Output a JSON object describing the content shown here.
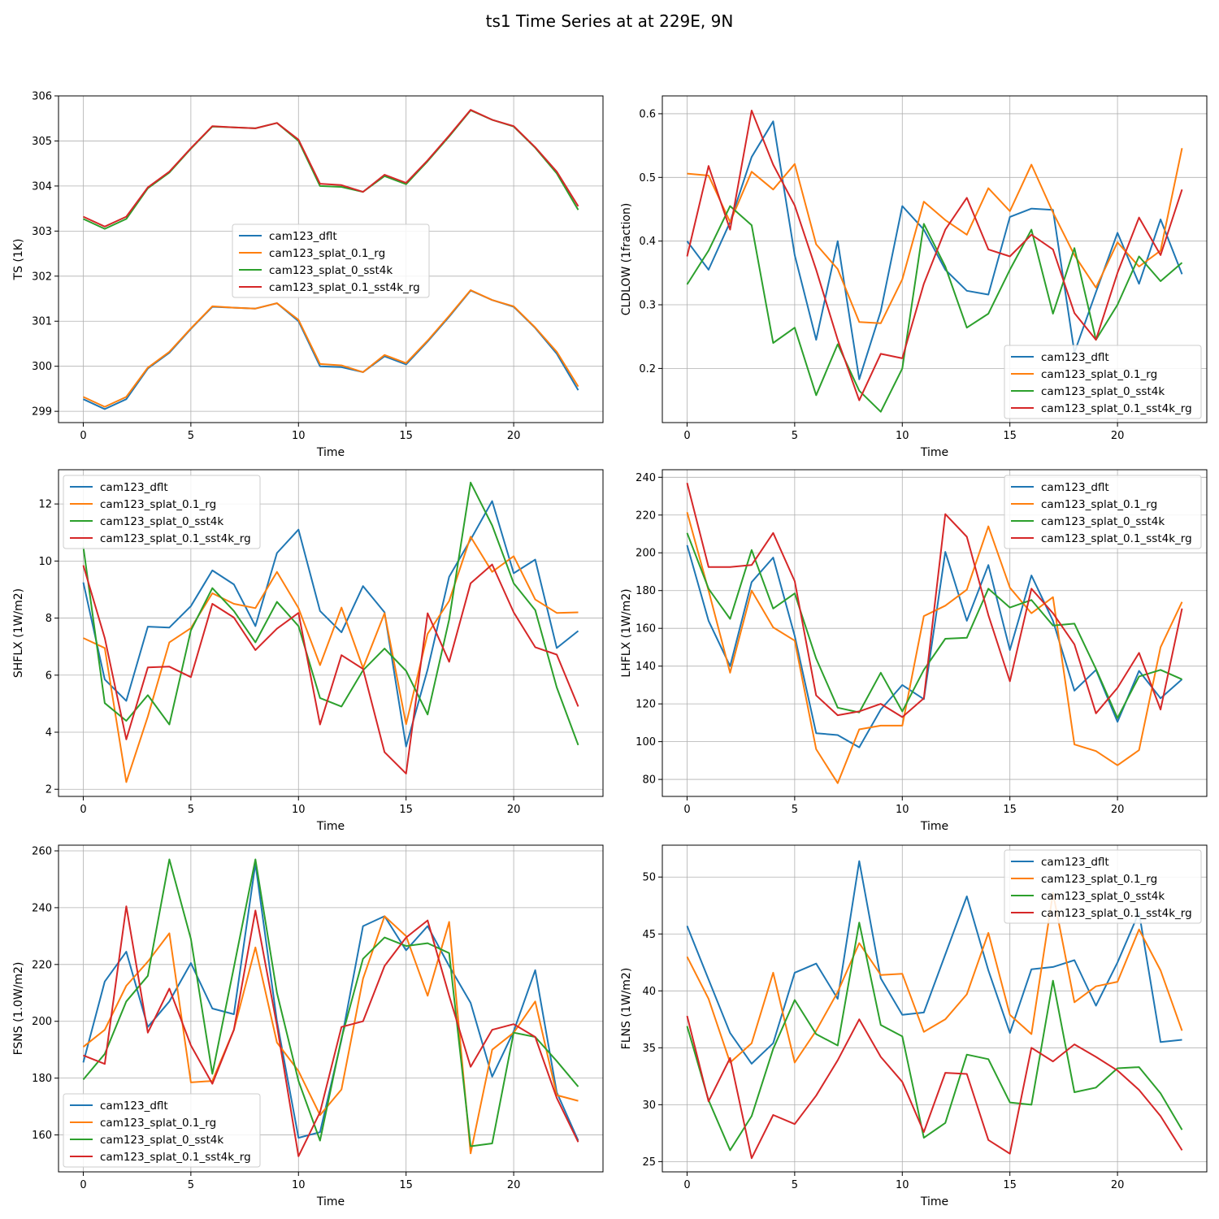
{
  "title": "ts1 Time Series at at 229E, 9N",
  "colors": {
    "cam123_dflt": "#1f77b4",
    "cam123_splat_0.1_rg": "#ff7f0e",
    "cam123_splat_0_sst4k": "#2ca02c",
    "cam123_splat_0.1_sst4k_rg": "#d62728"
  },
  "chart_data": [
    {
      "type": "line",
      "title": "",
      "xlabel": "Time",
      "ylabel": "TS (1K)",
      "xlim": [
        -1.15,
        24.15
      ],
      "ylim": [
        298.75,
        306.0
      ],
      "xticks": [
        0,
        5,
        10,
        15,
        20
      ],
      "yticks": [
        299,
        300,
        301,
        302,
        303,
        304,
        305,
        306
      ],
      "grid": true,
      "legend_position": "center",
      "x": [
        0,
        1,
        2,
        3,
        4,
        5,
        6,
        7,
        8,
        9,
        10,
        11,
        12,
        13,
        14,
        15,
        16,
        17,
        18,
        19,
        20,
        21,
        22,
        23
      ],
      "series": [
        {
          "name": "cam123_dflt",
          "values": [
            299.27,
            299.05,
            299.27,
            299.95,
            300.3,
            300.83,
            301.32,
            301.3,
            301.28,
            301.4,
            301.0,
            300.0,
            299.98,
            299.87,
            300.22,
            300.04,
            300.55,
            301.1,
            301.68,
            301.47,
            301.32,
            300.85,
            300.28,
            299.47
          ]
        },
        {
          "name": "cam123_splat_0.1_rg",
          "values": [
            299.32,
            299.1,
            299.32,
            299.97,
            300.32,
            300.84,
            301.33,
            301.3,
            301.28,
            301.4,
            301.03,
            300.05,
            300.02,
            299.87,
            300.25,
            300.07,
            300.57,
            301.12,
            301.69,
            301.47,
            301.33,
            300.86,
            300.32,
            299.55
          ]
        },
        {
          "name": "cam123_splat_0_sst4k",
          "values": [
            303.27,
            303.05,
            303.27,
            303.95,
            304.3,
            304.83,
            305.32,
            305.3,
            305.28,
            305.4,
            305.0,
            304.0,
            303.98,
            303.87,
            304.22,
            304.04,
            304.55,
            305.1,
            305.68,
            305.47,
            305.32,
            304.85,
            304.28,
            303.47
          ]
        },
        {
          "name": "cam123_splat_0.1_sst4k_rg",
          "values": [
            303.32,
            303.1,
            303.32,
            303.97,
            304.32,
            304.84,
            305.33,
            305.3,
            305.28,
            305.4,
            305.03,
            304.05,
            304.02,
            303.87,
            304.25,
            304.07,
            304.57,
            305.12,
            305.69,
            305.47,
            305.33,
            304.86,
            304.32,
            303.55
          ]
        }
      ]
    },
    {
      "type": "line",
      "title": "",
      "xlabel": "Time",
      "ylabel": "CLDLOW (1fraction)",
      "xlim": [
        -1.15,
        24.15
      ],
      "ylim": [
        0.115,
        0.628
      ],
      "xticks": [
        0,
        5,
        10,
        15,
        20
      ],
      "yticks": [
        0.2,
        0.3,
        0.4,
        0.5,
        0.6
      ],
      "ytick_labels": [
        "0.2",
        "0.3",
        "0.4",
        "0.5",
        "0.6"
      ],
      "grid": true,
      "legend_position": "lower-right",
      "x": [
        0,
        1,
        2,
        3,
        4,
        5,
        6,
        7,
        8,
        9,
        10,
        11,
        12,
        13,
        14,
        15,
        16,
        17,
        18,
        19,
        20,
        21,
        22,
        23
      ],
      "series": [
        {
          "name": "cam123_dflt",
          "values": [
            0.4,
            0.355,
            0.43,
            0.532,
            0.588,
            0.378,
            0.245,
            0.4,
            0.183,
            0.29,
            0.455,
            0.418,
            0.355,
            0.322,
            0.316,
            0.438,
            0.451,
            0.449,
            0.225,
            0.32,
            0.413,
            0.333,
            0.434,
            0.348
          ]
        },
        {
          "name": "cam123_splat_0.1_rg",
          "values": [
            0.506,
            0.503,
            0.43,
            0.509,
            0.481,
            0.521,
            0.395,
            0.356,
            0.273,
            0.271,
            0.34,
            0.462,
            0.433,
            0.41,
            0.483,
            0.447,
            0.52,
            0.445,
            0.378,
            0.327,
            0.398,
            0.36,
            0.385,
            0.546
          ]
        },
        {
          "name": "cam123_splat_0_sst4k",
          "values": [
            0.332,
            0.385,
            0.455,
            0.425,
            0.24,
            0.264,
            0.158,
            0.238,
            0.165,
            0.132,
            0.2,
            0.427,
            0.36,
            0.264,
            0.286,
            0.355,
            0.418,
            0.286,
            0.389,
            0.245,
            0.3,
            0.376,
            0.337,
            0.366
          ]
        },
        {
          "name": "cam123_splat_0.1_sst4k_rg",
          "values": [
            0.376,
            0.518,
            0.418,
            0.605,
            0.52,
            0.456,
            0.355,
            0.245,
            0.15,
            0.223,
            0.216,
            0.333,
            0.418,
            0.468,
            0.387,
            0.376,
            0.41,
            0.387,
            0.287,
            0.245,
            0.35,
            0.437,
            0.378,
            0.481
          ]
        }
      ]
    },
    {
      "type": "line",
      "title": "",
      "xlabel": "Time",
      "ylabel": "SHFLX (1W/m2)",
      "xlim": [
        -1.15,
        24.15
      ],
      "ylim": [
        1.75,
        13.2
      ],
      "xticks": [
        0,
        5,
        10,
        15,
        20
      ],
      "yticks": [
        2,
        4,
        6,
        8,
        10,
        12
      ],
      "grid": true,
      "legend_position": "upper-left",
      "x": [
        0,
        1,
        2,
        3,
        4,
        5,
        6,
        7,
        8,
        9,
        10,
        11,
        12,
        13,
        14,
        15,
        16,
        17,
        18,
        19,
        20,
        21,
        22,
        23
      ],
      "series": [
        {
          "name": "cam123_dflt",
          "values": [
            9.25,
            5.85,
            5.1,
            7.7,
            7.67,
            8.42,
            9.67,
            9.18,
            7.72,
            10.28,
            11.1,
            8.25,
            7.5,
            9.12,
            8.2,
            3.5,
            6.2,
            9.45,
            10.75,
            12.1,
            9.57,
            10.05,
            6.95,
            7.55
          ]
        },
        {
          "name": "cam123_splat_0.1_rg",
          "values": [
            7.3,
            6.95,
            2.25,
            4.55,
            7.15,
            7.65,
            8.87,
            8.5,
            8.35,
            9.62,
            8.35,
            6.35,
            8.37,
            6.25,
            8.17,
            4.28,
            7.45,
            8.6,
            10.85,
            9.62,
            10.17,
            8.65,
            8.18,
            8.2
          ]
        },
        {
          "name": "cam123_splat_0_sst4k",
          "values": [
            10.5,
            5.02,
            4.4,
            5.3,
            4.27,
            7.57,
            9.05,
            8.25,
            7.15,
            8.57,
            7.72,
            5.2,
            4.9,
            6.17,
            6.93,
            6.15,
            4.62,
            7.95,
            12.75,
            11.25,
            9.22,
            8.28,
            5.57,
            3.55
          ]
        },
        {
          "name": "cam123_splat_0.1_sst4k_rg",
          "values": [
            9.85,
            7.3,
            3.75,
            6.27,
            6.3,
            5.93,
            8.5,
            8.02,
            6.88,
            7.63,
            8.18,
            4.27,
            6.7,
            6.22,
            3.3,
            2.55,
            8.17,
            6.47,
            9.22,
            9.88,
            8.2,
            6.98,
            6.72,
            4.9
          ]
        }
      ]
    },
    {
      "type": "line",
      "title": "",
      "xlabel": "Time",
      "ylabel": "LHFLX (1W/m2)",
      "xlim": [
        -1.15,
        24.15
      ],
      "ylim": [
        71.0,
        244.0
      ],
      "xticks": [
        0,
        5,
        10,
        15,
        20
      ],
      "yticks": [
        80,
        100,
        120,
        140,
        160,
        180,
        200,
        220,
        240
      ],
      "grid": true,
      "legend_position": "upper-right",
      "x": [
        0,
        1,
        2,
        3,
        4,
        5,
        6,
        7,
        8,
        9,
        10,
        11,
        12,
        13,
        14,
        15,
        16,
        17,
        18,
        19,
        20,
        21,
        22,
        23
      ],
      "series": [
        {
          "name": "cam123_dflt",
          "values": [
            204,
            164,
            140,
            184.5,
            197.5,
            156,
            104.5,
            103.5,
            97,
            117,
            130,
            122.5,
            200.5,
            164,
            193.5,
            148.5,
            188,
            164,
            127,
            138,
            110.5,
            137.5,
            123,
            133
          ]
        },
        {
          "name": "cam123_splat_0.1_rg",
          "values": [
            221.5,
            180,
            136.5,
            180,
            160.5,
            153.5,
            96,
            78,
            106.5,
            108.5,
            108.5,
            166.5,
            172,
            180.5,
            214,
            181.5,
            168,
            176.5,
            98.5,
            95,
            87.5,
            95.5,
            150,
            174
          ]
        },
        {
          "name": "cam123_splat_0_sst4k",
          "values": [
            210.5,
            181,
            165,
            201.5,
            170.5,
            178.5,
            144,
            118,
            115.5,
            136.5,
            116,
            138,
            154.5,
            155,
            181,
            171,
            175,
            161.5,
            162.5,
            138.5,
            112.5,
            134.5,
            138,
            133
          ]
        },
        {
          "name": "cam123_splat_0.1_sst4k_rg",
          "values": [
            237,
            192.5,
            192.5,
            193.5,
            210.5,
            185,
            124.5,
            114,
            116,
            120,
            113,
            123,
            220.5,
            208.5,
            167,
            132,
            181,
            168,
            151.5,
            115,
            128.5,
            147,
            117,
            170.5
          ]
        }
      ]
    },
    {
      "type": "line",
      "title": "",
      "xlabel": "Time",
      "ylabel": "FSNS (1.0W/m2)",
      "xlim": [
        -1.15,
        24.15
      ],
      "ylim": [
        147.0,
        262.0
      ],
      "xticks": [
        0,
        5,
        10,
        15,
        20
      ],
      "yticks": [
        160,
        180,
        200,
        220,
        240,
        260
      ],
      "grid": true,
      "legend_position": "lower-left",
      "x": [
        0,
        1,
        2,
        3,
        4,
        5,
        6,
        7,
        8,
        9,
        10,
        11,
        12,
        13,
        14,
        15,
        16,
        17,
        18,
        19,
        20,
        21,
        22,
        23
      ],
      "series": [
        {
          "name": "cam123_dflt",
          "values": [
            185.5,
            214,
            224.5,
            198,
            207,
            220.5,
            204.5,
            202.5,
            255.5,
            200,
            159,
            161,
            193.5,
            233.5,
            237,
            225,
            233.5,
            219.5,
            206.5,
            180.5,
            196.5,
            218,
            175,
            158
          ]
        },
        {
          "name": "cam123_splat_0.1_rg",
          "values": [
            191,
            197,
            212.5,
            221,
            231,
            178.5,
            179,
            197,
            226,
            192.5,
            182.5,
            167,
            176,
            215,
            237,
            230,
            209,
            235,
            153.5,
            190,
            196,
            207,
            174,
            172
          ]
        },
        {
          "name": "cam123_splat_0_sst4k",
          "values": [
            179.5,
            188.5,
            207,
            216,
            257,
            229,
            181.5,
            219,
            257,
            210,
            179,
            158,
            194,
            222,
            229.5,
            226.5,
            227.5,
            224,
            156,
            157,
            196,
            194.5,
            186,
            177
          ]
        },
        {
          "name": "cam123_splat_0.1_sst4k_rg",
          "values": [
            188,
            185,
            240.5,
            196,
            211.5,
            191.5,
            178,
            197,
            239,
            198.5,
            152.5,
            168,
            198,
            200,
            219.5,
            229.5,
            235.5,
            209,
            184,
            197,
            199,
            194.5,
            173,
            157.5
          ]
        }
      ]
    },
    {
      "type": "line",
      "title": "",
      "xlabel": "Time",
      "ylabel": "FLNS (1W/m2)",
      "xlim": [
        -1.15,
        24.15
      ],
      "ylim": [
        24.1,
        52.8
      ],
      "xticks": [
        0,
        5,
        10,
        15,
        20
      ],
      "yticks": [
        25,
        30,
        35,
        40,
        45,
        50
      ],
      "grid": true,
      "legend_position": "upper-right",
      "x": [
        0,
        1,
        2,
        3,
        4,
        5,
        6,
        7,
        8,
        9,
        10,
        11,
        12,
        13,
        14,
        15,
        16,
        17,
        18,
        19,
        20,
        21,
        22,
        23
      ],
      "series": [
        {
          "name": "cam123_dflt",
          "values": [
            45.7,
            41,
            36.3,
            33.6,
            35.4,
            41.6,
            42.4,
            39.3,
            51.4,
            41.1,
            37.9,
            38.1,
            43.2,
            48.3,
            41.8,
            36.3,
            41.9,
            42.1,
            42.7,
            38.7,
            42.5,
            46.9,
            35.5,
            35.7
          ]
        },
        {
          "name": "cam123_splat_0.1_rg",
          "values": [
            43,
            39.3,
            33.7,
            35.4,
            41.6,
            33.7,
            36.5,
            39.9,
            44.2,
            41.4,
            41.5,
            36.4,
            37.5,
            39.7,
            45.1,
            37.9,
            36.2,
            48.6,
            39,
            40.4,
            40.8,
            45.4,
            41.8,
            36.5
          ]
        },
        {
          "name": "cam123_splat_0_sst4k",
          "values": [
            36.9,
            30.4,
            26,
            29,
            34.9,
            39.2,
            36.2,
            35.2,
            46,
            37,
            36,
            27.1,
            28.4,
            34.4,
            34,
            30.2,
            30,
            40.9,
            31.1,
            31.5,
            33.2,
            33.3,
            31,
            27.8
          ]
        },
        {
          "name": "cam123_splat_0.1_sst4k_rg",
          "values": [
            37.8,
            30.3,
            34.1,
            25.3,
            29.1,
            28.3,
            30.8,
            33.9,
            37.5,
            34.2,
            32,
            27.6,
            32.8,
            32.7,
            26.9,
            25.7,
            35,
            33.8,
            35.3,
            34.2,
            33,
            31.3,
            29,
            26
          ]
        }
      ]
    }
  ]
}
